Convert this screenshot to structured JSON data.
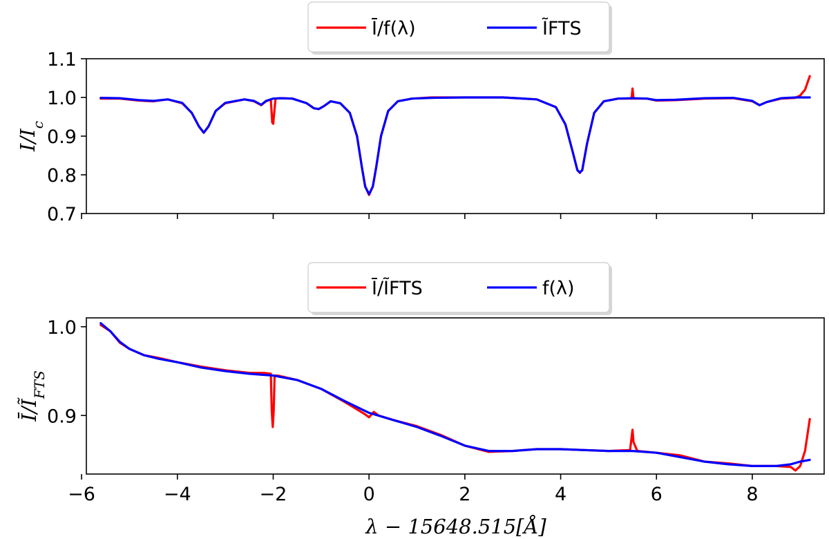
{
  "chart_data": [
    {
      "type": "line",
      "panel": "top",
      "xlim": [
        -5.9,
        9.5
      ],
      "ylim": [
        0.7,
        1.1
      ],
      "yticks": [
        0.7,
        0.8,
        0.9,
        1.0,
        1.1
      ],
      "ytick_labels": [
        "0.7",
        "0.8",
        "0.9",
        "1.0",
        "1.1"
      ],
      "xticks": [
        -6,
        -4,
        -2,
        0,
        2,
        4,
        6,
        8
      ],
      "xtick_labels": [
        "",
        "",
        "",
        "",
        "",
        "",
        "",
        ""
      ],
      "ylabel": "I/Ic",
      "xlabel": "",
      "legend_position": "top-center, above axes",
      "series": [
        {
          "name": "Ī/f(λ)",
          "color": "#ff0000",
          "x": [
            -5.6,
            -5.2,
            -4.8,
            -4.5,
            -4.2,
            -3.9,
            -3.7,
            -3.55,
            -3.45,
            -3.35,
            -3.2,
            -3.0,
            -2.6,
            -2.4,
            -2.25,
            -2.15,
            -2.05,
            -2.02,
            -2.0,
            -1.98,
            -1.95,
            -1.85,
            -1.6,
            -1.3,
            -1.15,
            -1.05,
            -0.95,
            -0.8,
            -0.6,
            -0.4,
            -0.25,
            -0.15,
            -0.08,
            0.0,
            0.08,
            0.15,
            0.25,
            0.4,
            0.6,
            0.9,
            1.3,
            2.0,
            2.8,
            3.5,
            3.9,
            4.1,
            4.25,
            4.35,
            4.4,
            4.45,
            4.55,
            4.7,
            4.9,
            5.2,
            5.48,
            5.5,
            5.52,
            5.8,
            6.0,
            6.4,
            7.0,
            7.6,
            8.0,
            8.15,
            8.3,
            8.6,
            8.9,
            9.0,
            9.1,
            9.2
          ],
          "y": [
            0.997,
            0.997,
            0.992,
            0.99,
            0.995,
            0.985,
            0.96,
            0.925,
            0.909,
            0.925,
            0.965,
            0.985,
            0.995,
            0.99,
            0.98,
            0.99,
            0.995,
            0.935,
            0.932,
            0.96,
            0.997,
            0.998,
            0.997,
            0.985,
            0.972,
            0.97,
            0.977,
            0.99,
            0.985,
            0.96,
            0.9,
            0.82,
            0.77,
            0.748,
            0.77,
            0.82,
            0.9,
            0.965,
            0.99,
            0.997,
            1.0,
            1.0,
            1.0,
            0.995,
            0.975,
            0.93,
            0.86,
            0.812,
            0.805,
            0.812,
            0.88,
            0.96,
            0.99,
            0.997,
            0.997,
            1.023,
            0.997,
            0.997,
            0.992,
            0.993,
            0.997,
            0.998,
            0.99,
            0.98,
            0.988,
            0.997,
            0.999,
            1.005,
            1.02,
            1.055
          ]
        },
        {
          "name": "ĨFTS",
          "color": "#0000ff",
          "x": [
            -5.6,
            -5.2,
            -4.8,
            -4.5,
            -4.2,
            -3.9,
            -3.7,
            -3.55,
            -3.45,
            -3.35,
            -3.2,
            -3.0,
            -2.6,
            -2.4,
            -2.25,
            -2.15,
            -2.0,
            -1.85,
            -1.6,
            -1.3,
            -1.15,
            -1.05,
            -0.95,
            -0.8,
            -0.6,
            -0.4,
            -0.25,
            -0.15,
            -0.08,
            0.0,
            0.08,
            0.15,
            0.25,
            0.4,
            0.6,
            0.9,
            1.3,
            2.0,
            2.8,
            3.5,
            3.9,
            4.1,
            4.25,
            4.35,
            4.4,
            4.45,
            4.55,
            4.7,
            4.9,
            5.2,
            5.5,
            5.8,
            6.0,
            6.4,
            7.0,
            7.6,
            8.0,
            8.15,
            8.3,
            8.6,
            8.9,
            9.2
          ],
          "y": [
            0.999,
            0.998,
            0.993,
            0.991,
            0.995,
            0.986,
            0.96,
            0.925,
            0.909,
            0.925,
            0.965,
            0.986,
            0.995,
            0.991,
            0.981,
            0.991,
            0.997,
            0.998,
            0.997,
            0.985,
            0.972,
            0.97,
            0.977,
            0.99,
            0.985,
            0.96,
            0.9,
            0.82,
            0.77,
            0.75,
            0.77,
            0.82,
            0.9,
            0.965,
            0.99,
            0.997,
            0.999,
            1.0,
            1.0,
            0.995,
            0.975,
            0.93,
            0.86,
            0.812,
            0.806,
            0.812,
            0.88,
            0.96,
            0.99,
            0.997,
            0.998,
            0.997,
            0.993,
            0.994,
            0.998,
            0.999,
            0.991,
            0.98,
            0.988,
            0.998,
            1.0,
            1.0
          ]
        }
      ]
    },
    {
      "type": "line",
      "panel": "bottom",
      "xlim": [
        -5.9,
        9.5
      ],
      "ylim": [
        0.834,
        1.01
      ],
      "yticks": [
        0.9,
        1.0
      ],
      "ytick_labels": [
        "0.9",
        "1.0"
      ],
      "xticks": [
        -6,
        -4,
        -2,
        0,
        2,
        4,
        6,
        8
      ],
      "xtick_labels": [
        "−6",
        "−4",
        "−2",
        "0",
        "2",
        "4",
        "6",
        "8"
      ],
      "ylabel": "Ī/ĨFTS",
      "xlabel": "λ − 15648.515[Å]",
      "legend_position": "top-center, above axes",
      "series": [
        {
          "name": "Ī/ĨFTS",
          "color": "#ff0000",
          "x": [
            -5.6,
            -5.4,
            -5.2,
            -5.0,
            -4.7,
            -4.4,
            -4.0,
            -3.5,
            -3.0,
            -2.5,
            -2.2,
            -2.05,
            -2.03,
            -2.01,
            -1.99,
            -1.97,
            -1.9,
            -1.5,
            -1.0,
            -0.5,
            -0.1,
            0.0,
            0.1,
            0.2,
            0.5,
            1.0,
            1.5,
            2.0,
            2.5,
            3.0,
            3.5,
            4.0,
            4.5,
            5.0,
            5.45,
            5.48,
            5.5,
            5.52,
            5.6,
            6.0,
            6.5,
            7.0,
            7.5,
            8.0,
            8.5,
            8.8,
            8.9,
            9.0,
            9.1,
            9.2
          ],
          "y": [
            1.002,
            0.995,
            0.982,
            0.975,
            0.968,
            0.965,
            0.96,
            0.955,
            0.951,
            0.948,
            0.948,
            0.947,
            0.905,
            0.887,
            0.905,
            0.945,
            0.945,
            0.94,
            0.93,
            0.915,
            0.902,
            0.898,
            0.904,
            0.9,
            0.895,
            0.888,
            0.878,
            0.866,
            0.859,
            0.86,
            0.862,
            0.862,
            0.861,
            0.86,
            0.861,
            0.875,
            0.884,
            0.87,
            0.86,
            0.858,
            0.855,
            0.848,
            0.846,
            0.843,
            0.843,
            0.842,
            0.838,
            0.843,
            0.86,
            0.896
          ]
        },
        {
          "name": "f(λ)",
          "color": "#0000ff",
          "x": [
            -5.6,
            -5.4,
            -5.2,
            -5.0,
            -4.7,
            -4.4,
            -4.0,
            -3.5,
            -3.0,
            -2.5,
            -2.0,
            -1.5,
            -1.0,
            -0.5,
            0.0,
            0.5,
            1.0,
            1.5,
            2.0,
            2.5,
            3.0,
            3.5,
            4.0,
            4.5,
            5.0,
            5.5,
            6.0,
            6.5,
            7.0,
            7.5,
            8.0,
            8.5,
            8.8,
            9.0,
            9.2
          ],
          "y": [
            1.004,
            0.995,
            0.983,
            0.975,
            0.968,
            0.964,
            0.96,
            0.954,
            0.95,
            0.947,
            0.945,
            0.94,
            0.93,
            0.916,
            0.903,
            0.895,
            0.887,
            0.877,
            0.866,
            0.86,
            0.86,
            0.862,
            0.862,
            0.861,
            0.86,
            0.86,
            0.858,
            0.853,
            0.848,
            0.845,
            0.843,
            0.843,
            0.845,
            0.848,
            0.85
          ]
        }
      ]
    }
  ]
}
